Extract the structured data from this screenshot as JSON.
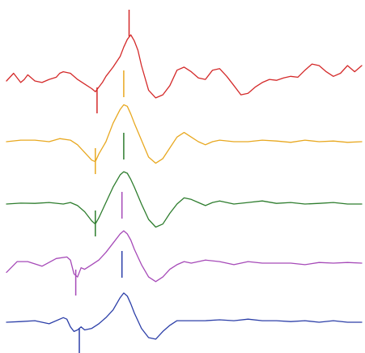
{
  "chart_data": {
    "type": "line",
    "title": "",
    "xlabel": "",
    "ylabel": "",
    "grid": false,
    "legend": "none",
    "xlim": [
      0,
      100
    ],
    "ylim": [
      -1.5,
      1.5
    ],
    "markers": {
      "start": [
        25.5,
        25.0,
        25.0,
        19.5,
        20.5
      ],
      "peak": [
        34.5,
        33.0,
        33.0,
        32.5,
        32.5
      ]
    },
    "series": [
      {
        "color": "#d42a2a",
        "x": [
          0,
          2,
          4,
          5,
          6,
          8,
          10,
          12,
          14,
          15,
          16,
          18,
          20,
          22,
          24,
          25,
          26,
          27,
          28,
          30,
          32,
          33,
          34,
          35,
          36,
          37,
          38,
          40,
          42,
          44,
          46,
          48,
          50,
          52,
          54,
          56,
          58,
          60,
          62,
          64,
          66,
          68,
          70,
          72,
          74,
          76,
          78,
          80,
          82,
          84,
          86,
          88,
          90,
          92,
          94,
          96,
          98,
          100
        ],
        "y": [
          0,
          0.25,
          -0.05,
          0.05,
          0.2,
          0.0,
          -0.05,
          0.05,
          0.12,
          0.25,
          0.3,
          0.25,
          0.05,
          -0.1,
          -0.25,
          -0.35,
          -0.2,
          -0.05,
          0.15,
          0.45,
          0.8,
          1.1,
          1.35,
          1.5,
          1.3,
          1.0,
          0.5,
          -0.3,
          -0.55,
          -0.45,
          -0.15,
          0.35,
          0.45,
          0.3,
          0.1,
          0.05,
          0.35,
          0.4,
          0.15,
          -0.15,
          -0.45,
          -0.4,
          -0.2,
          -0.05,
          0.05,
          0.02,
          0.1,
          0.15,
          0.12,
          0.35,
          0.55,
          0.5,
          0.3,
          0.15,
          0.25,
          0.5,
          0.3,
          0.5
        ]
      },
      {
        "color": "#e8a820",
        "x": [
          0,
          4,
          8,
          12,
          15,
          18,
          20,
          22,
          24,
          25,
          26,
          28,
          30,
          32,
          33,
          34,
          35,
          36,
          38,
          40,
          42,
          44,
          46,
          48,
          50,
          52,
          54,
          56,
          58,
          60,
          64,
          68,
          72,
          76,
          80,
          84,
          88,
          92,
          96,
          100
        ],
        "y": [
          0,
          0.05,
          0.05,
          0.0,
          0.1,
          0.05,
          -0.1,
          -0.35,
          -0.6,
          -0.65,
          -0.4,
          0.0,
          0.6,
          1.05,
          1.2,
          1.15,
          0.9,
          0.6,
          0.05,
          -0.5,
          -0.7,
          -0.55,
          -0.2,
          0.15,
          0.3,
          0.15,
          0.0,
          -0.1,
          0.0,
          0.05,
          0.0,
          0.0,
          0.05,
          0.02,
          -0.02,
          0.05,
          0.0,
          0.02,
          -0.02,
          0.0
        ]
      },
      {
        "color": "#2e7d2e",
        "x": [
          0,
          4,
          8,
          12,
          16,
          18,
          20,
          22,
          24,
          25,
          26,
          28,
          30,
          32,
          33,
          34,
          35,
          36,
          38,
          40,
          42,
          44,
          46,
          48,
          50,
          52,
          54,
          56,
          58,
          60,
          64,
          68,
          72,
          76,
          80,
          84,
          88,
          92,
          96,
          100
        ],
        "y": [
          0,
          0.03,
          0.02,
          0.05,
          0.0,
          0.05,
          -0.05,
          -0.25,
          -0.55,
          -0.65,
          -0.45,
          0.05,
          0.55,
          0.95,
          1.05,
          1.0,
          0.8,
          0.55,
          0.0,
          -0.5,
          -0.75,
          -0.65,
          -0.3,
          0.0,
          0.2,
          0.15,
          0.05,
          -0.05,
          0.05,
          0.1,
          0.0,
          0.05,
          0.1,
          0.02,
          0.05,
          0.0,
          0.02,
          0.05,
          0.0,
          0.0
        ]
      },
      {
        "color": "#a64ab8",
        "x": [
          0,
          3,
          6,
          10,
          14,
          17,
          18,
          19,
          20,
          21,
          22,
          24,
          26,
          28,
          30,
          32,
          33,
          34,
          35,
          36,
          38,
          40,
          42,
          44,
          46,
          48,
          50,
          52,
          56,
          60,
          64,
          68,
          72,
          76,
          80,
          84,
          88,
          92,
          96,
          100
        ],
        "y": [
          -0.3,
          0.05,
          0.05,
          -0.1,
          0.15,
          0.2,
          0.1,
          -0.35,
          -0.45,
          -0.15,
          -0.2,
          -0.05,
          0.1,
          0.35,
          0.65,
          0.95,
          1.05,
          0.95,
          0.75,
          0.45,
          -0.05,
          -0.45,
          -0.6,
          -0.45,
          -0.2,
          -0.05,
          0.05,
          0.0,
          0.1,
          0.05,
          -0.05,
          0.05,
          0.0,
          0.0,
          0.0,
          -0.05,
          0.02,
          0.0,
          0.02,
          0.0
        ]
      },
      {
        "color": "#2c3fa8",
        "x": [
          0,
          4,
          8,
          12,
          16,
          17,
          18,
          19,
          20,
          21,
          22,
          24,
          26,
          28,
          30,
          32,
          33,
          34,
          35,
          36,
          38,
          40,
          42,
          44,
          46,
          48,
          50,
          52,
          56,
          60,
          64,
          68,
          72,
          76,
          80,
          84,
          88,
          92,
          96,
          100
        ],
        "y": [
          0,
          0.02,
          0.05,
          -0.05,
          0.15,
          0.1,
          -0.15,
          -0.3,
          -0.25,
          -0.15,
          -0.25,
          -0.2,
          -0.05,
          0.15,
          0.4,
          0.8,
          0.95,
          0.85,
          0.6,
          0.3,
          -0.2,
          -0.5,
          -0.55,
          -0.3,
          -0.1,
          0.05,
          0.05,
          0.05,
          0.05,
          0.08,
          0.05,
          0.1,
          0.05,
          0.05,
          0.02,
          0.05,
          0.0,
          0.05,
          0.0,
          0.0
        ]
      }
    ]
  }
}
